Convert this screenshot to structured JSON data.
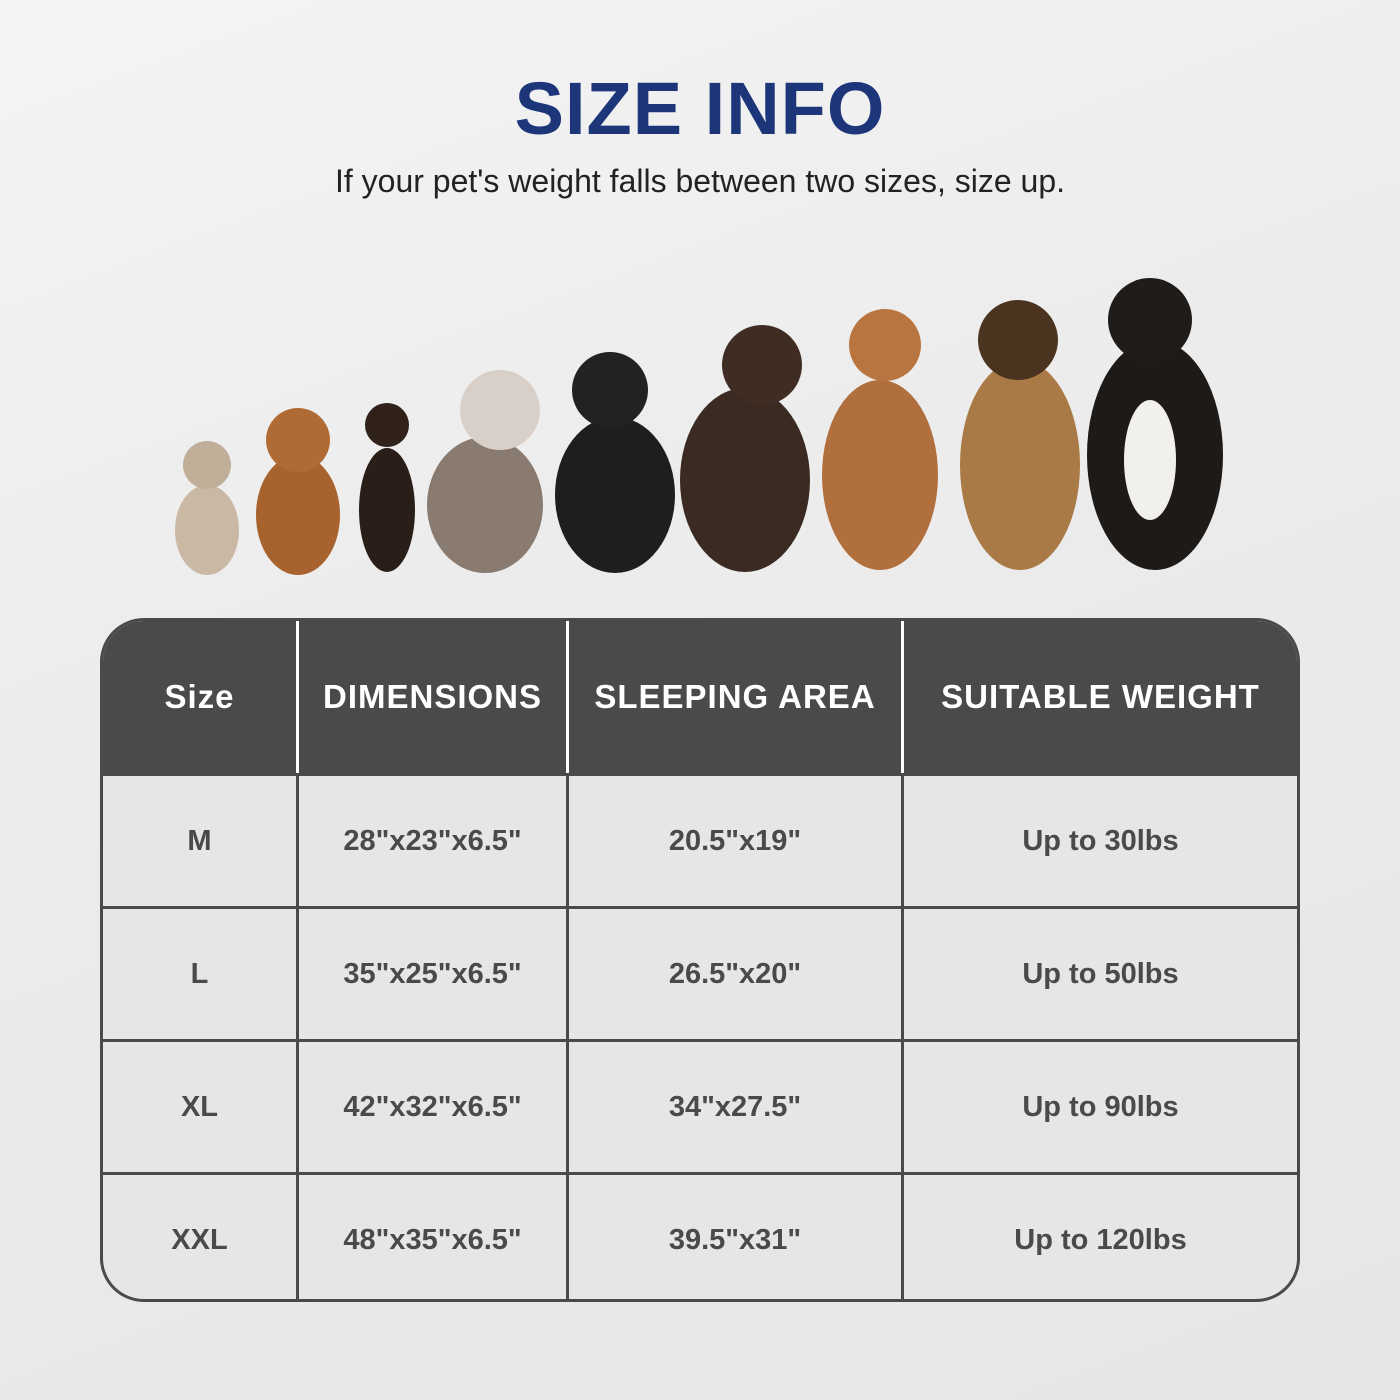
{
  "title": "SIZE INFO",
  "subtitle": "If your pet's weight falls between two sizes, size up.",
  "table": {
    "headers": [
      "Size",
      "DIMENSIONS",
      "SLEEPING AREA",
      "SUITABLE WEIGHT"
    ],
    "rows": [
      [
        "M",
        "28\"x23\"x6.5\"",
        "20.5\"x19\"",
        "Up to 30lbs"
      ],
      [
        "L",
        "35\"x25\"x6.5\"",
        "26.5\"x20\"",
        "Up to 50lbs"
      ],
      [
        "XL",
        "42\"x32\"x6.5\"",
        "34\"x27.5\"",
        "Up to 90lbs"
      ],
      [
        "XXL",
        "48\"x35\"x6.5\"",
        "39.5\"x31\"",
        "Up to 120lbs"
      ]
    ]
  },
  "colors": {
    "title": "#1d3679",
    "table_dark": "#4a4a4a"
  }
}
